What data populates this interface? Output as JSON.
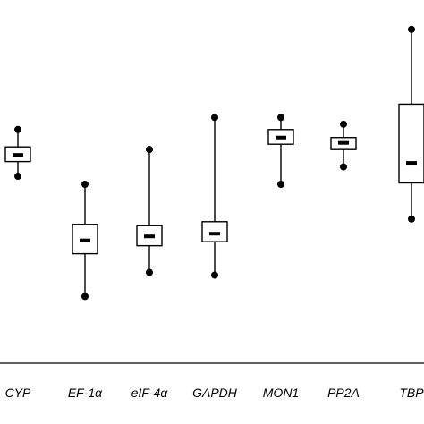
{
  "chart_data": {
    "type": "box",
    "categories": [
      "CYP",
      "EF-1α",
      "eIF-4α",
      "GAPDH",
      "MON1",
      "PP2A",
      "TBP"
    ],
    "series": [
      {
        "values": [
          {
            "category": "CYP",
            "min": 21.3,
            "q1": 21.85,
            "median": 22.1,
            "q3": 22.4,
            "max": 23.05
          },
          {
            "category": "EF-1α",
            "min": 16.8,
            "q1": 18.4,
            "median": 18.9,
            "q3": 19.5,
            "max": 21.0
          },
          {
            "category": "eIF-4α",
            "min": 17.7,
            "q1": 18.7,
            "median": 19.05,
            "q3": 19.45,
            "max": 22.3
          },
          {
            "category": "GAPDH",
            "min": 17.6,
            "q1": 18.85,
            "median": 19.15,
            "q3": 19.6,
            "max": 23.5
          },
          {
            "category": "MON1",
            "min": 21.0,
            "q1": 22.5,
            "median": 22.75,
            "q3": 23.05,
            "max": 23.5
          },
          {
            "category": "PP2A",
            "min": 21.65,
            "q1": 22.3,
            "median": 22.55,
            "q3": 22.75,
            "max": 23.25
          },
          {
            "category": "TBP",
            "min": 19.7,
            "q1": 21.05,
            "median": 21.8,
            "q3": 24.0,
            "max": 26.8
          }
        ]
      }
    ],
    "ylim": [
      14.3,
      27.9
    ],
    "grid": false,
    "style": {
      "stroke": "#000000",
      "box_fill": "#ffffff",
      "marker": "filled-circle"
    }
  }
}
